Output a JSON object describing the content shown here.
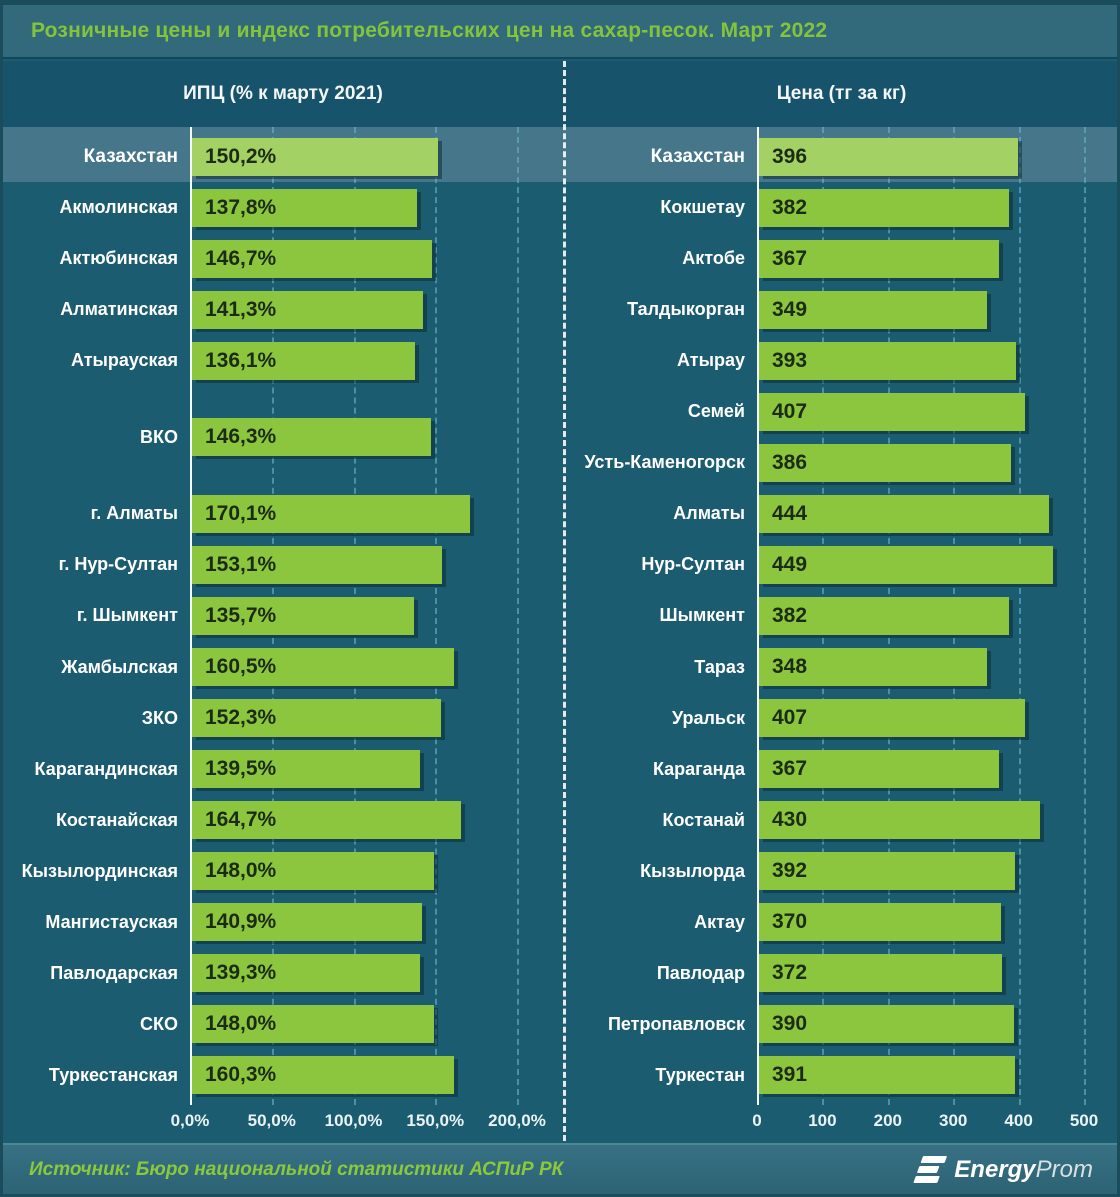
{
  "header": {
    "title": "Розничные цены и индекс потребительских цен на сахар-песок. Март 2022"
  },
  "footer": {
    "source": "Источник: Бюро национальной статистики АСПиР РК",
    "logo": {
      "icon": "energyprom-stripes-icon",
      "bold": "Energy",
      "light": "Prom"
    }
  },
  "colors": {
    "background": "#1b5c70",
    "title_bar": "#32697b",
    "header_band": "#17536a",
    "highlight_band": "#45768a",
    "bar": "#8cc63f",
    "bar_highlight": "#a3d164",
    "bar_value_text": "#1c2b13",
    "title_green": "#84c43d",
    "source_green": "#8cc83c",
    "gridline": "#67b2ca",
    "axis": "#f4f8f9",
    "label_text": "#ffffff"
  },
  "chart_data": [
    {
      "type": "bar",
      "orientation": "horizontal",
      "title": "ИПЦ (% к марту 2021)",
      "xlim": [
        0,
        200
      ],
      "x_ticks": [
        "0,0%",
        "50,0%",
        "100,0%",
        "150,0%",
        "200,0%"
      ],
      "grid": "dashed-vertical",
      "legend": "none",
      "slots": 19,
      "highlight_category": "Казахстан",
      "rows": [
        {
          "label": "Казахстан",
          "value": 150.2,
          "display": "150,2%",
          "slot": 0,
          "highlight": true
        },
        {
          "label": "Акмолинская",
          "value": 137.8,
          "display": "137,8%",
          "slot": 1
        },
        {
          "label": "Актюбинская",
          "value": 146.7,
          "display": "146,7%",
          "slot": 2
        },
        {
          "label": "Алматинская",
          "value": 141.3,
          "display": "141,3%",
          "slot": 3
        },
        {
          "label": "Атырауская",
          "value": 136.1,
          "display": "136,1%",
          "slot": 4
        },
        {
          "label": "ВКО",
          "value": 146.3,
          "display": "146,3%",
          "slot": 5.5
        },
        {
          "label": "г. Алматы",
          "value": 170.1,
          "display": "170,1%",
          "slot": 7
        },
        {
          "label": "г. Нур-Султан",
          "value": 153.1,
          "display": "153,1%",
          "slot": 8
        },
        {
          "label": "г. Шымкент",
          "value": 135.7,
          "display": "135,7%",
          "slot": 9
        },
        {
          "label": "Жамбылская",
          "value": 160.5,
          "display": "160,5%",
          "slot": 10
        },
        {
          "label": "ЗКО",
          "value": 152.3,
          "display": "152,3%",
          "slot": 11
        },
        {
          "label": "Карагандинская",
          "value": 139.5,
          "display": "139,5%",
          "slot": 12
        },
        {
          "label": "Костанайская",
          "value": 164.7,
          "display": "164,7%",
          "slot": 13
        },
        {
          "label": "Кызылординская",
          "value": 148.0,
          "display": "148,0%",
          "slot": 14
        },
        {
          "label": "Мангистауская",
          "value": 140.9,
          "display": "140,9%",
          "slot": 15
        },
        {
          "label": "Павлодарская",
          "value": 139.3,
          "display": "139,3%",
          "slot": 16
        },
        {
          "label": "СКО",
          "value": 148.0,
          "display": "148,0%",
          "slot": 17
        },
        {
          "label": "Туркестанская",
          "value": 160.3,
          "display": "160,3%",
          "slot": 18
        }
      ]
    },
    {
      "type": "bar",
      "orientation": "horizontal",
      "title": "Цена (тг за кг)",
      "xlim": [
        0,
        500
      ],
      "x_ticks": [
        "0",
        "100",
        "200",
        "300",
        "400",
        "500"
      ],
      "grid": "dashed-vertical",
      "legend": "none",
      "slots": 19,
      "highlight_category": "Казахстан",
      "rows": [
        {
          "label": "Казахстан",
          "value": 396,
          "display": "396",
          "slot": 0,
          "highlight": true
        },
        {
          "label": "Кокшетау",
          "value": 382,
          "display": "382",
          "slot": 1
        },
        {
          "label": "Актобе",
          "value": 367,
          "display": "367",
          "slot": 2
        },
        {
          "label": "Талдыкорган",
          "value": 349,
          "display": "349",
          "slot": 3
        },
        {
          "label": "Атырау",
          "value": 393,
          "display": "393",
          "slot": 4
        },
        {
          "label": "Семей",
          "value": 407,
          "display": "407",
          "slot": 5
        },
        {
          "label": "Усть-Каменогорск",
          "value": 386,
          "display": "386",
          "slot": 6
        },
        {
          "label": "Алматы",
          "value": 444,
          "display": "444",
          "slot": 7
        },
        {
          "label": "Нур-Султан",
          "value": 449,
          "display": "449",
          "slot": 8
        },
        {
          "label": "Шымкент",
          "value": 382,
          "display": "382",
          "slot": 9
        },
        {
          "label": "Тараз",
          "value": 348,
          "display": "348",
          "slot": 10
        },
        {
          "label": "Уральск",
          "value": 407,
          "display": "407",
          "slot": 11
        },
        {
          "label": "Караганда",
          "value": 367,
          "display": "367",
          "slot": 12
        },
        {
          "label": "Костанай",
          "value": 430,
          "display": "430",
          "slot": 13
        },
        {
          "label": "Кызылорда",
          "value": 392,
          "display": "392",
          "slot": 14
        },
        {
          "label": "Актау",
          "value": 370,
          "display": "370",
          "slot": 15
        },
        {
          "label": "Павлодар",
          "value": 372,
          "display": "372",
          "slot": 16
        },
        {
          "label": "Петропавловск",
          "value": 390,
          "display": "390",
          "slot": 17
        },
        {
          "label": "Туркестан",
          "value": 391,
          "display": "391",
          "slot": 18
        }
      ]
    }
  ]
}
